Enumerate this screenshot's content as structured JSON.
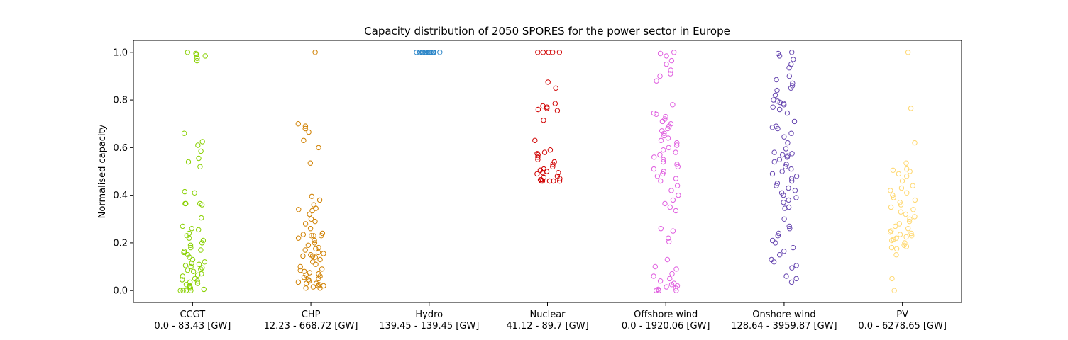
{
  "chart_data": {
    "type": "scatter",
    "title": "Capacity distribution of 2050 SPORES for the power sector in Europe",
    "xlabel": "",
    "ylabel": "Normalised capacity",
    "ylim": [
      -0.05,
      1.05
    ],
    "yticks": [
      "0.0",
      "0.2",
      "0.4",
      "0.6",
      "0.8",
      "1.0"
    ],
    "grid": false,
    "marker": "hollow circle",
    "categories": [
      {
        "name": "CCGT",
        "range": "0.0 - 83.43 [GW]",
        "color": "#88d000"
      },
      {
        "name": "CHP",
        "range": "12.23 - 668.72 [GW]",
        "color": "#d08000"
      },
      {
        "name": "Hydro",
        "range": "139.45 - 139.45 [GW]",
        "color": "#2c86c8"
      },
      {
        "name": "Nuclear",
        "range": "41.12 - 89.7 [GW]",
        "color": "#d00000"
      },
      {
        "name": "Offshore wind",
        "range": "0.0 - 1920.06 [GW]",
        "color": "#e060e0"
      },
      {
        "name": "Onshore wind",
        "range": "128.64 - 3959.87 [GW]",
        "color": "#6848b0"
      },
      {
        "name": "PV",
        "range": "0.0 - 6278.65 [GW]",
        "color": "#ffd870"
      }
    ],
    "series": [
      {
        "category": "CCGT",
        "values": [
          0.99,
          1.0,
          0.995,
          0.985,
          0.975,
          0.965,
          0.66,
          0.625,
          0.61,
          0.585,
          0.555,
          0.54,
          0.52,
          0.415,
          0.41,
          0.365,
          0.365,
          0.365,
          0.36,
          0.305,
          0.27,
          0.26,
          0.255,
          0.24,
          0.23,
          0.22,
          0.21,
          0.2,
          0.19,
          0.18,
          0.17,
          0.165,
          0.16,
          0.15,
          0.14,
          0.13,
          0.12,
          0.115,
          0.11,
          0.105,
          0.1,
          0.095,
          0.09,
          0.085,
          0.08,
          0.07,
          0.065,
          0.06,
          0.05,
          0.045,
          0.04,
          0.035,
          0.03,
          0.025,
          0.02,
          0.015,
          0.01,
          0.005,
          0.0,
          0.0,
          0.0,
          0.0
        ]
      },
      {
        "category": "CHP",
        "values": [
          1.0,
          0.7,
          0.69,
          0.68,
          0.665,
          0.63,
          0.6,
          0.535,
          0.395,
          0.38,
          0.36,
          0.345,
          0.34,
          0.335,
          0.32,
          0.3,
          0.29,
          0.28,
          0.26,
          0.24,
          0.235,
          0.23,
          0.23,
          0.23,
          0.22,
          0.21,
          0.2,
          0.19,
          0.18,
          0.175,
          0.17,
          0.16,
          0.155,
          0.15,
          0.145,
          0.145,
          0.14,
          0.13,
          0.12,
          0.11,
          0.1,
          0.09,
          0.085,
          0.08,
          0.075,
          0.07,
          0.065,
          0.06,
          0.055,
          0.05,
          0.045,
          0.04,
          0.035,
          0.03,
          0.03,
          0.025,
          0.02,
          0.02,
          0.015,
          0.01,
          0.01
        ]
      },
      {
        "category": "Hydro",
        "values": [
          1.0,
          1.0,
          1.0,
          1.0,
          1.0,
          1.0,
          1.0,
          1.0,
          1.0,
          1.0,
          1.0,
          1.0,
          1.0,
          1.0,
          1.0,
          1.0,
          1.0,
          1.0,
          1.0,
          1.0
        ]
      },
      {
        "category": "Nuclear",
        "values": [
          1.0,
          1.0,
          1.0,
          1.0,
          1.0,
          0.875,
          0.85,
          0.785,
          0.775,
          0.77,
          0.765,
          0.76,
          0.755,
          0.715,
          0.63,
          0.59,
          0.58,
          0.575,
          0.57,
          0.56,
          0.55,
          0.54,
          0.53,
          0.52,
          0.51,
          0.505,
          0.5,
          0.495,
          0.495,
          0.49,
          0.48,
          0.475,
          0.47,
          0.465,
          0.465,
          0.46,
          0.46,
          0.46,
          0.46,
          0.46
        ]
      },
      {
        "category": "Offshore wind",
        "values": [
          1.0,
          0.995,
          0.985,
          0.965,
          0.95,
          0.925,
          0.91,
          0.9,
          0.88,
          0.78,
          0.745,
          0.74,
          0.73,
          0.72,
          0.71,
          0.7,
          0.69,
          0.68,
          0.67,
          0.66,
          0.65,
          0.64,
          0.63,
          0.62,
          0.61,
          0.6,
          0.59,
          0.58,
          0.57,
          0.56,
          0.55,
          0.54,
          0.53,
          0.52,
          0.51,
          0.5,
          0.49,
          0.48,
          0.47,
          0.46,
          0.44,
          0.42,
          0.4,
          0.38,
          0.365,
          0.35,
          0.335,
          0.26,
          0.25,
          0.22,
          0.205,
          0.13,
          0.1,
          0.09,
          0.07,
          0.06,
          0.05,
          0.04,
          0.03,
          0.025,
          0.02,
          0.015,
          0.01,
          0.005,
          0.0,
          0.0,
          0.0
        ]
      },
      {
        "category": "Onshore wind",
        "values": [
          1.0,
          0.995,
          0.985,
          0.97,
          0.95,
          0.935,
          0.9,
          0.885,
          0.87,
          0.86,
          0.85,
          0.84,
          0.82,
          0.8,
          0.795,
          0.79,
          0.785,
          0.78,
          0.77,
          0.76,
          0.745,
          0.71,
          0.69,
          0.685,
          0.68,
          0.66,
          0.645,
          0.62,
          0.595,
          0.58,
          0.575,
          0.57,
          0.565,
          0.56,
          0.55,
          0.54,
          0.53,
          0.52,
          0.51,
          0.5,
          0.49,
          0.48,
          0.47,
          0.46,
          0.45,
          0.44,
          0.43,
          0.42,
          0.41,
          0.4,
          0.39,
          0.38,
          0.37,
          0.35,
          0.345,
          0.3,
          0.27,
          0.26,
          0.24,
          0.23,
          0.21,
          0.2,
          0.18,
          0.165,
          0.15,
          0.13,
          0.12,
          0.105,
          0.095,
          0.06,
          0.05,
          0.035
        ]
      },
      {
        "category": "PV",
        "values": [
          1.0,
          0.765,
          0.62,
          0.535,
          0.51,
          0.505,
          0.5,
          0.49,
          0.48,
          0.46,
          0.44,
          0.43,
          0.42,
          0.41,
          0.4,
          0.39,
          0.38,
          0.37,
          0.36,
          0.35,
          0.34,
          0.33,
          0.32,
          0.31,
          0.3,
          0.29,
          0.28,
          0.27,
          0.26,
          0.25,
          0.245,
          0.24,
          0.235,
          0.23,
          0.225,
          0.22,
          0.215,
          0.21,
          0.2,
          0.19,
          0.185,
          0.18,
          0.175,
          0.15,
          0.05,
          0.0
        ]
      }
    ]
  }
}
